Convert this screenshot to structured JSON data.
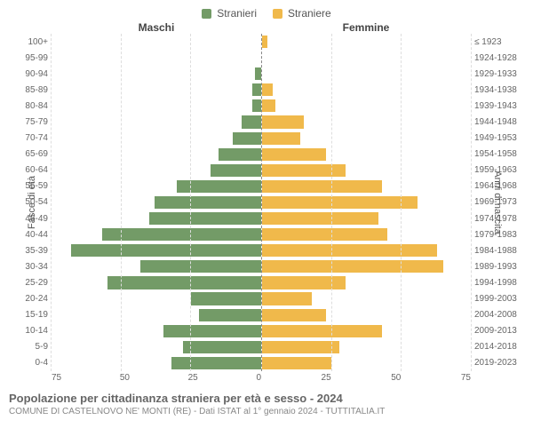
{
  "chart": {
    "type": "population-pyramid",
    "legend": {
      "male": "Stranieri",
      "female": "Straniere"
    },
    "headers": {
      "male": "Maschi",
      "female": "Femmine"
    },
    "axis_labels": {
      "left": "Fasce di età",
      "right": "Anni di nascita"
    },
    "colors": {
      "male": "#739b67",
      "female": "#f0b94b",
      "background": "#ffffff",
      "grid": "#dddddd",
      "center_line": "#888888",
      "text": "#666666"
    },
    "xmax": 75,
    "xticks": [
      75,
      50,
      25,
      0,
      25,
      50,
      75
    ],
    "font": {
      "tick_size": 10,
      "label_size": 11,
      "header_size": 12,
      "title_size": 13,
      "subtitle_size": 10
    },
    "rows": [
      {
        "age": "100+",
        "year": "≤ 1923",
        "m": 0,
        "f": 2
      },
      {
        "age": "95-99",
        "year": "1924-1928",
        "m": 0,
        "f": 0
      },
      {
        "age": "90-94",
        "year": "1929-1933",
        "m": 2,
        "f": 0
      },
      {
        "age": "85-89",
        "year": "1934-1938",
        "m": 3,
        "f": 4
      },
      {
        "age": "80-84",
        "year": "1939-1943",
        "m": 3,
        "f": 5
      },
      {
        "age": "75-79",
        "year": "1944-1948",
        "m": 7,
        "f": 15
      },
      {
        "age": "70-74",
        "year": "1949-1953",
        "m": 10,
        "f": 14
      },
      {
        "age": "65-69",
        "year": "1954-1958",
        "m": 15,
        "f": 23
      },
      {
        "age": "60-64",
        "year": "1959-1963",
        "m": 18,
        "f": 30
      },
      {
        "age": "55-59",
        "year": "1964-1968",
        "m": 30,
        "f": 43
      },
      {
        "age": "50-54",
        "year": "1969-1973",
        "m": 38,
        "f": 56
      },
      {
        "age": "45-49",
        "year": "1974-1978",
        "m": 40,
        "f": 42
      },
      {
        "age": "40-44",
        "year": "1979-1983",
        "m": 57,
        "f": 45
      },
      {
        "age": "35-39",
        "year": "1984-1988",
        "m": 68,
        "f": 63
      },
      {
        "age": "30-34",
        "year": "1989-1993",
        "m": 43,
        "f": 65
      },
      {
        "age": "25-29",
        "year": "1994-1998",
        "m": 55,
        "f": 30
      },
      {
        "age": "20-24",
        "year": "1999-2003",
        "m": 25,
        "f": 18
      },
      {
        "age": "15-19",
        "year": "2004-2008",
        "m": 22,
        "f": 23
      },
      {
        "age": "10-14",
        "year": "2009-2013",
        "m": 35,
        "f": 43
      },
      {
        "age": "5-9",
        "year": "2014-2018",
        "m": 28,
        "f": 28
      },
      {
        "age": "0-4",
        "year": "2019-2023",
        "m": 32,
        "f": 25
      }
    ]
  },
  "caption": {
    "title": "Popolazione per cittadinanza straniera per età e sesso - 2024",
    "subtitle": "COMUNE DI CASTELNOVO NE' MONTI (RE) - Dati ISTAT al 1° gennaio 2024 - TUTTITALIA.IT"
  }
}
